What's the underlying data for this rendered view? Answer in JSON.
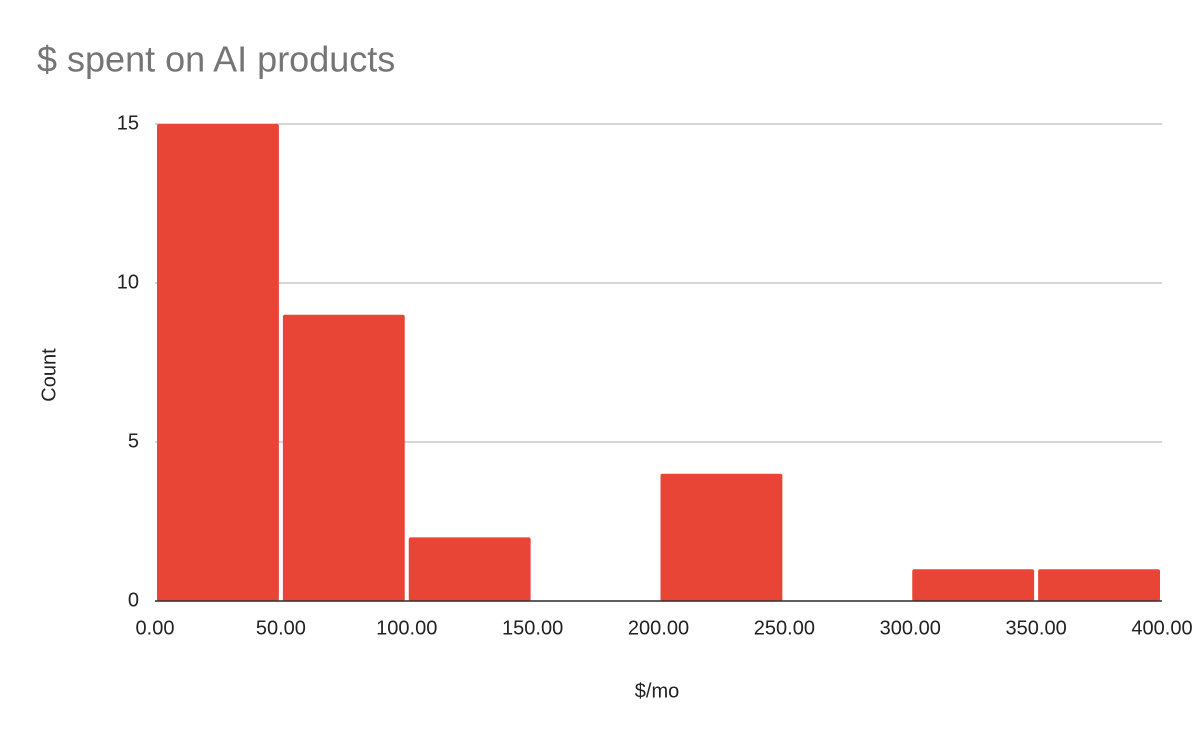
{
  "chart_data": {
    "type": "histogram",
    "title": "$ spent on AI products",
    "xlabel": "$/mo",
    "ylabel": "Count",
    "bins": [
      0,
      50,
      100,
      150,
      200,
      250,
      300,
      350,
      400
    ],
    "values": [
      15,
      9,
      2,
      0,
      4,
      0,
      1,
      1
    ],
    "color": "#e84536",
    "xlim": [
      0,
      400
    ],
    "xticks": [
      {
        "value": 0,
        "label": "0.00"
      },
      {
        "value": 50,
        "label": "50.00"
      },
      {
        "value": 100,
        "label": "100.00"
      },
      {
        "value": 150,
        "label": "150.00"
      },
      {
        "value": 200,
        "label": "200.00"
      },
      {
        "value": 250,
        "label": "250.00"
      },
      {
        "value": 300,
        "label": "300.00"
      },
      {
        "value": 350,
        "label": "350.00"
      },
      {
        "value": 400,
        "label": "400.00"
      }
    ],
    "ylim": [
      0,
      15
    ],
    "yticks": [
      0,
      5,
      10,
      15
    ],
    "grid": true
  }
}
